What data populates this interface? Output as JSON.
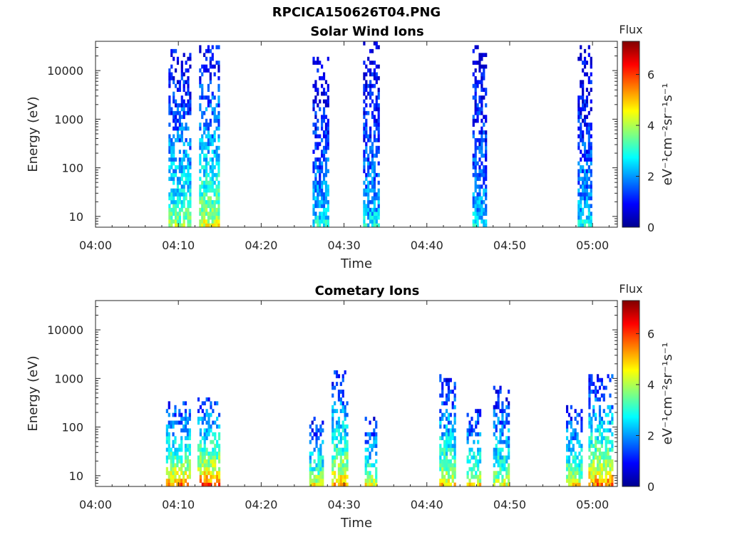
{
  "figure": {
    "title": "RPCICA150626T04.PNG"
  },
  "colormap": {
    "name": "jet",
    "stops": [
      "#00008f",
      "#0000ff",
      "#00ffff",
      "#ffff00",
      "#ff0000",
      "#800000"
    ]
  },
  "chart_data": [
    {
      "type": "heatmap",
      "title": "Solar Wind Ions",
      "xlabel": "Time",
      "ylabel": "Energy (eV)",
      "xlim": [
        "04:00",
        "05:03"
      ],
      "ylim": [
        6,
        40000
      ],
      "yscale": "log",
      "xticks": [
        "04:00",
        "04:10",
        "04:20",
        "04:30",
        "04:40",
        "04:50",
        "05:00"
      ],
      "yticks": [
        "10",
        "100",
        "1000",
        "10000"
      ],
      "colorbar": {
        "label": "Flux",
        "units": "eV⁻¹cm⁻²sr⁻¹s⁻¹",
        "ticks": [
          "0",
          "2",
          "4",
          "6"
        ],
        "range": [
          0,
          7.3
        ]
      },
      "bursts": [
        {
          "start": "04:08.8",
          "end": "04:11.5",
          "max_energy": 30000,
          "low_flux": 4.3
        },
        {
          "start": "04:12.5",
          "end": "04:14.8",
          "max_energy": 35000,
          "low_flux": 5.0
        },
        {
          "start": "04:26.2",
          "end": "04:28.0",
          "max_energy": 20000,
          "low_flux": 3.2
        },
        {
          "start": "04:32.3",
          "end": "04:34.2",
          "max_energy": 40000,
          "low_flux": 3.0
        },
        {
          "start": "04:45.5",
          "end": "04:47.2",
          "max_energy": 35000,
          "low_flux": 3.0
        },
        {
          "start": "04:58.2",
          "end": "04:59.8",
          "max_energy": 35000,
          "low_flux": 3.0
        }
      ]
    },
    {
      "type": "heatmap",
      "title": "Cometary Ions",
      "xlabel": "Time",
      "ylabel": "Energy (eV)",
      "xlim": [
        "04:00",
        "05:03"
      ],
      "ylim": [
        6,
        40000
      ],
      "yscale": "log",
      "xticks": [
        "04:00",
        "04:10",
        "04:20",
        "04:30",
        "04:40",
        "04:50",
        "05:00"
      ],
      "yticks": [
        "10",
        "100",
        "1000",
        "10000"
      ],
      "colorbar": {
        "label": "Flux",
        "units": "eV⁻¹cm⁻²sr⁻¹s⁻¹",
        "ticks": [
          "0",
          "2",
          "4",
          "6"
        ],
        "range": [
          0,
          7.3
        ]
      },
      "bursts": [
        {
          "start": "04:08.5",
          "end": "04:11.3",
          "max_energy": 350,
          "low_flux": 6.5
        },
        {
          "start": "04:12.3",
          "end": "04:15.0",
          "max_energy": 400,
          "low_flux": 7.0
        },
        {
          "start": "04:25.8",
          "end": "04:27.5",
          "max_energy": 150,
          "low_flux": 5.5
        },
        {
          "start": "04:28.5",
          "end": "04:30.5",
          "max_energy": 1500,
          "low_flux": 6.0
        },
        {
          "start": "04:32.5",
          "end": "04:34.0",
          "max_energy": 150,
          "low_flux": 5.5
        },
        {
          "start": "04:41.5",
          "end": "04:43.5",
          "max_energy": 1200,
          "low_flux": 5.5
        },
        {
          "start": "04:44.8",
          "end": "04:46.5",
          "max_energy": 250,
          "low_flux": 5.5
        },
        {
          "start": "04:48.0",
          "end": "04:50.0",
          "max_energy": 700,
          "low_flux": 5.0
        },
        {
          "start": "04:56.8",
          "end": "04:58.8",
          "max_energy": 300,
          "low_flux": 5.5
        },
        {
          "start": "04:59.5",
          "end": "05:02.5",
          "max_energy": 1200,
          "low_flux": 6.5
        }
      ]
    }
  ]
}
